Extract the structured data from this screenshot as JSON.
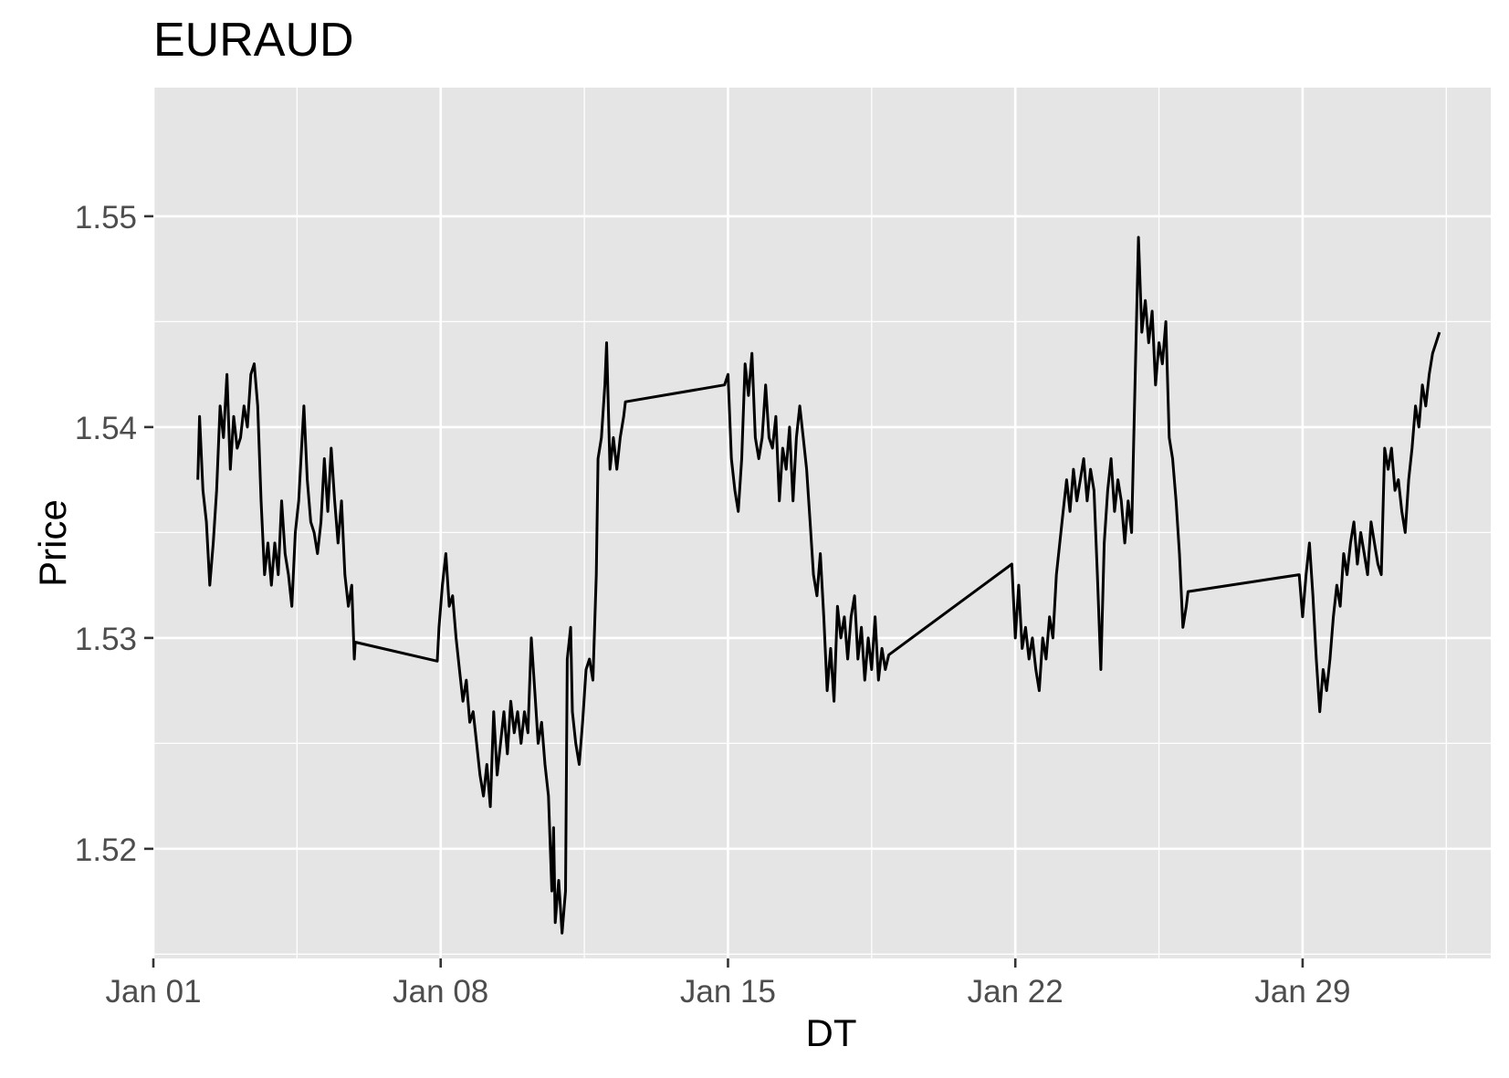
{
  "chart_data": {
    "type": "line",
    "title": "EURAUD",
    "xlabel": "DT",
    "ylabel": "Price",
    "ylim": [
      1.5148,
      1.5561
    ],
    "xlim": [
      "2024-01-01 00:00",
      "2024-02-02 14:00"
    ],
    "y_ticks": [
      "1.52",
      "1.53",
      "1.54",
      "1.55"
    ],
    "x_ticks": [
      "Jan 01",
      "Jan 08",
      "Jan 15",
      "Jan 22",
      "Jan 29"
    ],
    "grid": true,
    "background": "#e5e5e5",
    "line_color": "#000000",
    "series": [
      {
        "points": [
          [
            "2024-01-02 02:00",
            1.5375
          ],
          [
            "2024-01-02 03:00",
            1.5405
          ],
          [
            "2024-01-02 05:00",
            1.537
          ],
          [
            "2024-01-02 07:00",
            1.5355
          ],
          [
            "2024-01-02 09:00",
            1.5325
          ],
          [
            "2024-01-02 11:00",
            1.5345
          ],
          [
            "2024-01-02 13:00",
            1.537
          ],
          [
            "2024-01-02 15:00",
            1.541
          ],
          [
            "2024-01-02 17:00",
            1.5395
          ],
          [
            "2024-01-02 19:00",
            1.5425
          ],
          [
            "2024-01-02 21:00",
            1.538
          ],
          [
            "2024-01-02 23:00",
            1.5405
          ],
          [
            "2024-01-03 01:00",
            1.539
          ],
          [
            "2024-01-03 03:00",
            1.5395
          ],
          [
            "2024-01-03 05:00",
            1.541
          ],
          [
            "2024-01-03 07:00",
            1.54
          ],
          [
            "2024-01-03 09:00",
            1.5425
          ],
          [
            "2024-01-03 11:00",
            1.543
          ],
          [
            "2024-01-03 13:00",
            1.541
          ],
          [
            "2024-01-03 15:00",
            1.5365
          ],
          [
            "2024-01-03 17:00",
            1.533
          ],
          [
            "2024-01-03 19:00",
            1.5345
          ],
          [
            "2024-01-03 21:00",
            1.5325
          ],
          [
            "2024-01-03 23:00",
            1.5345
          ],
          [
            "2024-01-04 01:00",
            1.533
          ],
          [
            "2024-01-04 03:00",
            1.5365
          ],
          [
            "2024-01-04 05:00",
            1.534
          ],
          [
            "2024-01-04 07:00",
            1.533
          ],
          [
            "2024-01-04 09:00",
            1.5315
          ],
          [
            "2024-01-04 11:00",
            1.535
          ],
          [
            "2024-01-04 13:00",
            1.5365
          ],
          [
            "2024-01-04 15:00",
            1.5395
          ],
          [
            "2024-01-04 16:00",
            1.541
          ],
          [
            "2024-01-04 18:00",
            1.5375
          ],
          [
            "2024-01-04 20:00",
            1.5355
          ],
          [
            "2024-01-04 22:00",
            1.535
          ],
          [
            "2024-01-05 00:00",
            1.534
          ],
          [
            "2024-01-05 02:00",
            1.5355
          ],
          [
            "2024-01-05 04:00",
            1.5385
          ],
          [
            "2024-01-05 06:00",
            1.536
          ],
          [
            "2024-01-05 08:00",
            1.539
          ],
          [
            "2024-01-05 10:00",
            1.5365
          ],
          [
            "2024-01-05 12:00",
            1.5345
          ],
          [
            "2024-01-05 14:00",
            1.5365
          ],
          [
            "2024-01-05 16:00",
            1.533
          ],
          [
            "2024-01-05 18:00",
            1.5315
          ],
          [
            "2024-01-05 20:00",
            1.5325
          ],
          [
            "2024-01-05 21:30",
            1.529
          ],
          [
            "2024-01-05 22:00",
            1.5298
          ],
          [
            "2024-01-07 22:00",
            1.5289
          ],
          [
            "2024-01-07 23:00",
            1.5305
          ],
          [
            "2024-01-08 01:00",
            1.5325
          ],
          [
            "2024-01-08 03:00",
            1.534
          ],
          [
            "2024-01-08 05:00",
            1.5315
          ],
          [
            "2024-01-08 07:00",
            1.532
          ],
          [
            "2024-01-08 09:00",
            1.53
          ],
          [
            "2024-01-08 11:00",
            1.5285
          ],
          [
            "2024-01-08 13:00",
            1.527
          ],
          [
            "2024-01-08 15:00",
            1.528
          ],
          [
            "2024-01-08 17:00",
            1.526
          ],
          [
            "2024-01-08 19:00",
            1.5265
          ],
          [
            "2024-01-08 21:00",
            1.525
          ],
          [
            "2024-01-08 23:00",
            1.5235
          ],
          [
            "2024-01-09 01:00",
            1.5225
          ],
          [
            "2024-01-09 03:00",
            1.524
          ],
          [
            "2024-01-09 05:00",
            1.522
          ],
          [
            "2024-01-09 07:00",
            1.5265
          ],
          [
            "2024-01-09 09:00",
            1.5235
          ],
          [
            "2024-01-09 11:00",
            1.525
          ],
          [
            "2024-01-09 13:00",
            1.5265
          ],
          [
            "2024-01-09 15:00",
            1.5245
          ],
          [
            "2024-01-09 17:00",
            1.527
          ],
          [
            "2024-01-09 19:00",
            1.5255
          ],
          [
            "2024-01-09 21:00",
            1.5265
          ],
          [
            "2024-01-09 23:00",
            1.525
          ],
          [
            "2024-01-10 01:00",
            1.5265
          ],
          [
            "2024-01-10 03:00",
            1.5255
          ],
          [
            "2024-01-10 05:00",
            1.53
          ],
          [
            "2024-01-10 07:00",
            1.5275
          ],
          [
            "2024-01-10 09:00",
            1.525
          ],
          [
            "2024-01-10 11:00",
            1.526
          ],
          [
            "2024-01-10 13:00",
            1.524
          ],
          [
            "2024-01-10 15:00",
            1.5225
          ],
          [
            "2024-01-10 17:00",
            1.518
          ],
          [
            "2024-01-10 18:00",
            1.521
          ],
          [
            "2024-01-10 19:00",
            1.5165
          ],
          [
            "2024-01-10 21:00",
            1.5185
          ],
          [
            "2024-01-10 23:00",
            1.516
          ],
          [
            "2024-01-11 01:00",
            1.518
          ],
          [
            "2024-01-11 02:00",
            1.529
          ],
          [
            "2024-01-11 04:00",
            1.5305
          ],
          [
            "2024-01-11 05:00",
            1.5265
          ],
          [
            "2024-01-11 07:00",
            1.525
          ],
          [
            "2024-01-11 09:00",
            1.524
          ],
          [
            "2024-01-11 11:00",
            1.526
          ],
          [
            "2024-01-11 13:00",
            1.5285
          ],
          [
            "2024-01-11 15:00",
            1.529
          ],
          [
            "2024-01-11 17:00",
            1.528
          ],
          [
            "2024-01-11 19:00",
            1.533
          ],
          [
            "2024-01-11 20:00",
            1.5385
          ],
          [
            "2024-01-11 22:00",
            1.5395
          ],
          [
            "2024-01-12 00:00",
            1.542
          ],
          [
            "2024-01-12 01:00",
            1.544
          ],
          [
            "2024-01-12 03:00",
            1.538
          ],
          [
            "2024-01-12 05:00",
            1.5395
          ],
          [
            "2024-01-12 07:00",
            1.538
          ],
          [
            "2024-01-12 09:00",
            1.5395
          ],
          [
            "2024-01-12 11:00",
            1.5405
          ],
          [
            "2024-01-12 12:00",
            1.5412
          ],
          [
            "2024-01-14 22:00",
            1.542
          ],
          [
            "2024-01-15 00:00",
            1.5425
          ],
          [
            "2024-01-15 02:00",
            1.5385
          ],
          [
            "2024-01-15 04:00",
            1.537
          ],
          [
            "2024-01-15 06:00",
            1.536
          ],
          [
            "2024-01-15 08:00",
            1.5385
          ],
          [
            "2024-01-15 10:00",
            1.543
          ],
          [
            "2024-01-15 12:00",
            1.5415
          ],
          [
            "2024-01-15 14:00",
            1.5435
          ],
          [
            "2024-01-15 16:00",
            1.5395
          ],
          [
            "2024-01-15 18:00",
            1.5385
          ],
          [
            "2024-01-15 20:00",
            1.5395
          ],
          [
            "2024-01-15 22:00",
            1.542
          ],
          [
            "2024-01-16 00:00",
            1.5395
          ],
          [
            "2024-01-16 02:00",
            1.539
          ],
          [
            "2024-01-16 04:00",
            1.5405
          ],
          [
            "2024-01-16 06:00",
            1.5365
          ],
          [
            "2024-01-16 08:00",
            1.539
          ],
          [
            "2024-01-16 10:00",
            1.538
          ],
          [
            "2024-01-16 12:00",
            1.54
          ],
          [
            "2024-01-16 14:00",
            1.5365
          ],
          [
            "2024-01-16 16:00",
            1.5395
          ],
          [
            "2024-01-16 18:00",
            1.541
          ],
          [
            "2024-01-16 20:00",
            1.5395
          ],
          [
            "2024-01-16 22:00",
            1.538
          ],
          [
            "2024-01-17 00:00",
            1.5355
          ],
          [
            "2024-01-17 02:00",
            1.533
          ],
          [
            "2024-01-17 04:00",
            1.532
          ],
          [
            "2024-01-17 06:00",
            1.534
          ],
          [
            "2024-01-17 08:00",
            1.531
          ],
          [
            "2024-01-17 10:00",
            1.5275
          ],
          [
            "2024-01-17 12:00",
            1.5295
          ],
          [
            "2024-01-17 14:00",
            1.527
          ],
          [
            "2024-01-17 16:00",
            1.5315
          ],
          [
            "2024-01-17 18:00",
            1.53
          ],
          [
            "2024-01-17 20:00",
            1.531
          ],
          [
            "2024-01-17 22:00",
            1.529
          ],
          [
            "2024-01-18 00:00",
            1.531
          ],
          [
            "2024-01-18 02:00",
            1.532
          ],
          [
            "2024-01-18 04:00",
            1.529
          ],
          [
            "2024-01-18 06:00",
            1.5305
          ],
          [
            "2024-01-18 08:00",
            1.528
          ],
          [
            "2024-01-18 10:00",
            1.53
          ],
          [
            "2024-01-18 12:00",
            1.5285
          ],
          [
            "2024-01-18 14:00",
            1.531
          ],
          [
            "2024-01-18 16:00",
            1.528
          ],
          [
            "2024-01-18 18:00",
            1.5295
          ],
          [
            "2024-01-18 20:00",
            1.5285
          ],
          [
            "2024-01-18 22:00",
            1.5292
          ],
          [
            "2024-01-21 22:00",
            1.5335
          ],
          [
            "2024-01-22 00:00",
            1.53
          ],
          [
            "2024-01-22 02:00",
            1.5325
          ],
          [
            "2024-01-22 04:00",
            1.5295
          ],
          [
            "2024-01-22 06:00",
            1.5305
          ],
          [
            "2024-01-22 08:00",
            1.529
          ],
          [
            "2024-01-22 10:00",
            1.53
          ],
          [
            "2024-01-22 12:00",
            1.5285
          ],
          [
            "2024-01-22 14:00",
            1.5275
          ],
          [
            "2024-01-22 16:00",
            1.53
          ],
          [
            "2024-01-22 18:00",
            1.529
          ],
          [
            "2024-01-22 20:00",
            1.531
          ],
          [
            "2024-01-22 22:00",
            1.53
          ],
          [
            "2024-01-23 00:00",
            1.533
          ],
          [
            "2024-01-23 02:00",
            1.5345
          ],
          [
            "2024-01-23 04:00",
            1.536
          ],
          [
            "2024-01-23 06:00",
            1.5375
          ],
          [
            "2024-01-23 08:00",
            1.536
          ],
          [
            "2024-01-23 10:00",
            1.538
          ],
          [
            "2024-01-23 12:00",
            1.5365
          ],
          [
            "2024-01-23 14:00",
            1.5375
          ],
          [
            "2024-01-23 16:00",
            1.5385
          ],
          [
            "2024-01-23 18:00",
            1.5365
          ],
          [
            "2024-01-23 20:00",
            1.538
          ],
          [
            "2024-01-23 22:00",
            1.537
          ],
          [
            "2024-01-24 00:00",
            1.533
          ],
          [
            "2024-01-24 02:00",
            1.5285
          ],
          [
            "2024-01-24 04:00",
            1.5345
          ],
          [
            "2024-01-24 06:00",
            1.537
          ],
          [
            "2024-01-24 08:00",
            1.5385
          ],
          [
            "2024-01-24 10:00",
            1.536
          ],
          [
            "2024-01-24 12:00",
            1.5375
          ],
          [
            "2024-01-24 14:00",
            1.5365
          ],
          [
            "2024-01-24 16:00",
            1.5345
          ],
          [
            "2024-01-24 18:00",
            1.5365
          ],
          [
            "2024-01-24 20:00",
            1.535
          ],
          [
            "2024-01-24 22:00",
            1.542
          ],
          [
            "2024-01-25 00:00",
            1.549
          ],
          [
            "2024-01-25 02:00",
            1.5445
          ],
          [
            "2024-01-25 04:00",
            1.546
          ],
          [
            "2024-01-25 06:00",
            1.544
          ],
          [
            "2024-01-25 08:00",
            1.5455
          ],
          [
            "2024-01-25 10:00",
            1.542
          ],
          [
            "2024-01-25 12:00",
            1.544
          ],
          [
            "2024-01-25 14:00",
            1.543
          ],
          [
            "2024-01-25 16:00",
            1.545
          ],
          [
            "2024-01-25 18:00",
            1.5395
          ],
          [
            "2024-01-25 20:00",
            1.5385
          ],
          [
            "2024-01-25 22:00",
            1.5365
          ],
          [
            "2024-01-26 00:00",
            1.534
          ],
          [
            "2024-01-26 02:00",
            1.5305
          ],
          [
            "2024-01-26 04:00",
            1.5315
          ],
          [
            "2024-01-26 05:00",
            1.5322
          ],
          [
            "2024-01-28 22:00",
            1.533
          ],
          [
            "2024-01-29 00:00",
            1.531
          ],
          [
            "2024-01-29 02:00",
            1.533
          ],
          [
            "2024-01-29 04:00",
            1.5345
          ],
          [
            "2024-01-29 06:00",
            1.532
          ],
          [
            "2024-01-29 08:00",
            1.529
          ],
          [
            "2024-01-29 10:00",
            1.5265
          ],
          [
            "2024-01-29 12:00",
            1.5285
          ],
          [
            "2024-01-29 14:00",
            1.5275
          ],
          [
            "2024-01-29 16:00",
            1.529
          ],
          [
            "2024-01-29 18:00",
            1.531
          ],
          [
            "2024-01-29 20:00",
            1.5325
          ],
          [
            "2024-01-29 22:00",
            1.5315
          ],
          [
            "2024-01-30 00:00",
            1.534
          ],
          [
            "2024-01-30 02:00",
            1.533
          ],
          [
            "2024-01-30 04:00",
            1.5345
          ],
          [
            "2024-01-30 06:00",
            1.5355
          ],
          [
            "2024-01-30 08:00",
            1.5335
          ],
          [
            "2024-01-30 10:00",
            1.535
          ],
          [
            "2024-01-30 12:00",
            1.534
          ],
          [
            "2024-01-30 14:00",
            1.533
          ],
          [
            "2024-01-30 16:00",
            1.5355
          ],
          [
            "2024-01-30 18:00",
            1.5345
          ],
          [
            "2024-01-30 20:00",
            1.5335
          ],
          [
            "2024-01-30 22:00",
            1.533
          ],
          [
            "2024-01-31 00:00",
            1.539
          ],
          [
            "2024-01-31 02:00",
            1.538
          ],
          [
            "2024-01-31 04:00",
            1.539
          ],
          [
            "2024-01-31 06:00",
            1.537
          ],
          [
            "2024-01-31 08:00",
            1.5375
          ],
          [
            "2024-01-31 10:00",
            1.536
          ],
          [
            "2024-01-31 12:00",
            1.535
          ],
          [
            "2024-01-31 14:00",
            1.5375
          ],
          [
            "2024-01-31 16:00",
            1.539
          ],
          [
            "2024-01-31 18:00",
            1.541
          ],
          [
            "2024-01-31 20:00",
            1.54
          ],
          [
            "2024-01-31 22:00",
            1.542
          ],
          [
            "2024-02-01 00:00",
            1.541
          ],
          [
            "2024-02-01 02:00",
            1.5425
          ],
          [
            "2024-02-01 04:00",
            1.5435
          ],
          [
            "2024-02-01 06:00",
            1.544
          ],
          [
            "2024-02-01 08:00",
            1.5445
          ]
        ]
      }
    ]
  }
}
